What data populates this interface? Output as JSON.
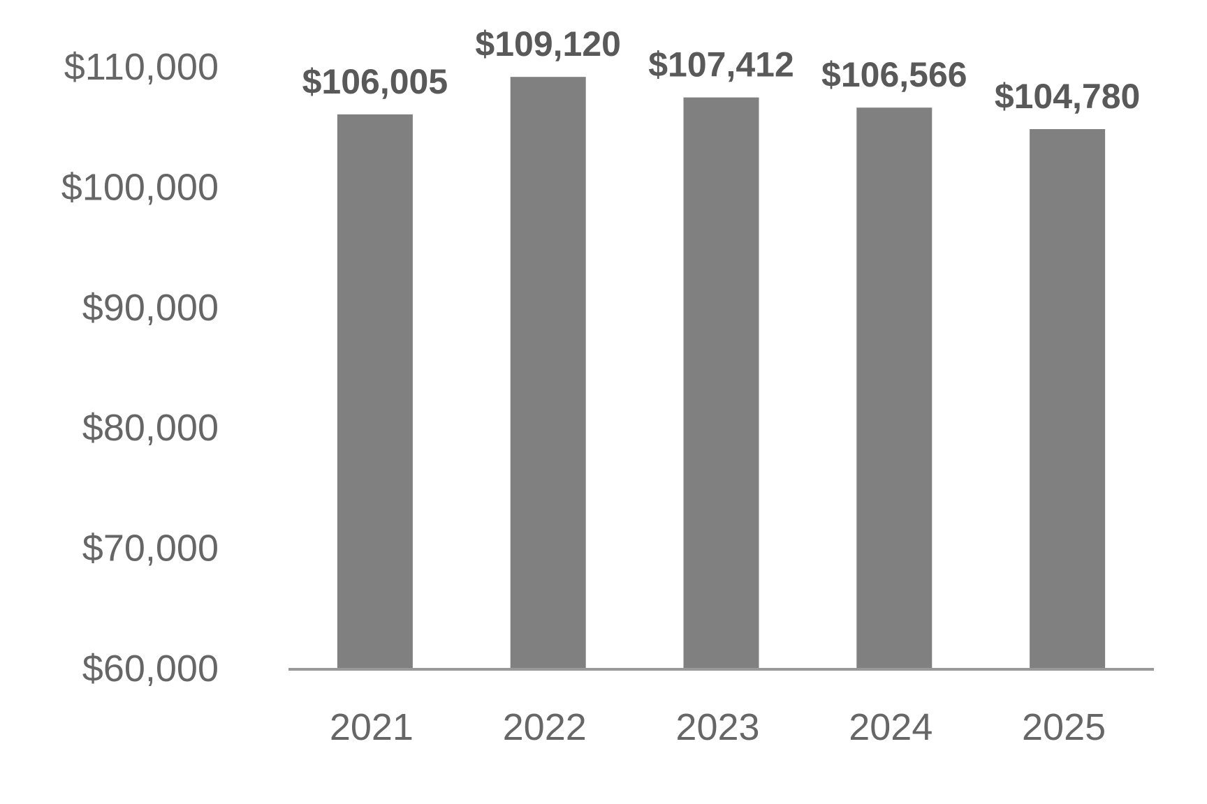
{
  "chart_data": {
    "type": "bar",
    "title": "",
    "xlabel": "",
    "ylabel": "",
    "categories": [
      "2021",
      "2022",
      "2023",
      "2024",
      "2025"
    ],
    "values": [
      106005,
      109120,
      107412,
      106566,
      104780
    ],
    "data_labels": [
      "$106,005",
      "$109,120",
      "$107,412",
      "$106,566",
      "$104,780"
    ],
    "yticks": [
      60000,
      70000,
      80000,
      90000,
      100000,
      110000
    ],
    "ytick_labels": [
      "$60,000",
      "$70,000",
      "$80,000",
      "$90,000",
      "$100,000",
      "$110,000"
    ],
    "ylim": [
      60000,
      110000
    ],
    "grid": false,
    "legend": "none",
    "bar_color": "#808080",
    "axis_color": "#999999",
    "text_color": "#666666"
  }
}
